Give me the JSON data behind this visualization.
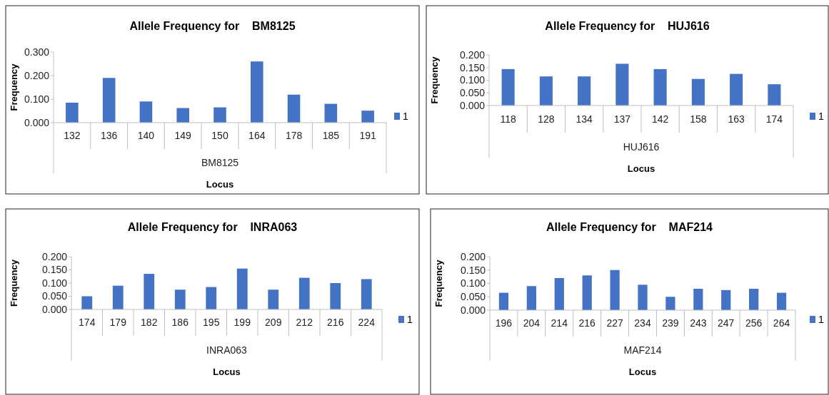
{
  "chart_data": [
    {
      "type": "bar",
      "title": "Allele Frequency for    BM8125",
      "xlabel": "Locus",
      "ylabel": "Frequency",
      "annotations": [
        "BM8125"
      ],
      "categories": [
        "132",
        "136",
        "140",
        "149",
        "150",
        "164",
        "178",
        "185",
        "191"
      ],
      "series": [
        {
          "name": "1",
          "color": "#4472c4",
          "values": [
            0.085,
            0.19,
            0.09,
            0.062,
            0.065,
            0.26,
            0.119,
            0.08,
            0.051
          ]
        }
      ],
      "ylim": [
        0,
        0.3
      ],
      "yticks": [
        {
          "value": 0,
          "label": "0.000"
        },
        {
          "value": 0.1,
          "label": "0.100"
        },
        {
          "value": 0.2,
          "label": "0.200"
        },
        {
          "value": 0.3,
          "label": "0.300"
        }
      ],
      "grid": false,
      "legend": "right"
    },
    {
      "type": "bar",
      "title": "Allele Frequency for    HUJ616",
      "xlabel": "Locus",
      "ylabel": "Frequency",
      "annotations": [
        "HUJ616"
      ],
      "categories": [
        "118",
        "128",
        "134",
        "137",
        "142",
        "158",
        "163",
        "174"
      ],
      "series": [
        {
          "name": "1",
          "color": "#4472c4",
          "values": [
            0.144,
            0.115,
            0.115,
            0.165,
            0.144,
            0.105,
            0.125,
            0.084
          ]
        }
      ],
      "ylim": [
        0,
        0.2
      ],
      "yticks": [
        {
          "value": 0,
          "label": "0.000"
        },
        {
          "value": 0.05,
          "label": "0.050"
        },
        {
          "value": 0.1,
          "label": "0.100"
        },
        {
          "value": 0.15,
          "label": "0.150"
        },
        {
          "value": 0.2,
          "label": "0.200"
        }
      ],
      "grid": false,
      "legend": "right"
    },
    {
      "type": "bar",
      "title": "Allele Frequency for    INRA063",
      "xlabel": "Locus",
      "ylabel": "Frequency",
      "annotations": [
        "INRA063"
      ],
      "categories": [
        "174",
        "179",
        "182",
        "186",
        "195",
        "199",
        "209",
        "212",
        "216",
        "224"
      ],
      "series": [
        {
          "name": "1",
          "color": "#4472c4",
          "values": [
            0.05,
            0.09,
            0.135,
            0.075,
            0.085,
            0.155,
            0.075,
            0.12,
            0.1,
            0.115
          ]
        }
      ],
      "ylim": [
        0,
        0.2
      ],
      "yticks": [
        {
          "value": 0,
          "label": "0.000"
        },
        {
          "value": 0.05,
          "label": "0.050"
        },
        {
          "value": 0.1,
          "label": "0.100"
        },
        {
          "value": 0.15,
          "label": "0.150"
        },
        {
          "value": 0.2,
          "label": "0.200"
        }
      ],
      "grid": false,
      "legend": "right"
    },
    {
      "type": "bar",
      "title": "Allele Frequency for    MAF214",
      "xlabel": "Locus",
      "ylabel": "Frequency",
      "annotations": [
        "MAF214"
      ],
      "categories": [
        "196",
        "204",
        "214",
        "216",
        "227",
        "234",
        "239",
        "243",
        "247",
        "256",
        "264"
      ],
      "series": [
        {
          "name": "1",
          "color": "#4472c4",
          "values": [
            0.065,
            0.09,
            0.12,
            0.13,
            0.15,
            0.095,
            0.05,
            0.08,
            0.075,
            0.08,
            0.065
          ]
        }
      ],
      "ylim": [
        0,
        0.2
      ],
      "yticks": [
        {
          "value": 0,
          "label": "0.000"
        },
        {
          "value": 0.05,
          "label": "0.050"
        },
        {
          "value": 0.1,
          "label": "0.100"
        },
        {
          "value": 0.15,
          "label": "0.150"
        },
        {
          "value": 0.2,
          "label": "0.200"
        }
      ],
      "grid": false,
      "legend": "right"
    }
  ]
}
